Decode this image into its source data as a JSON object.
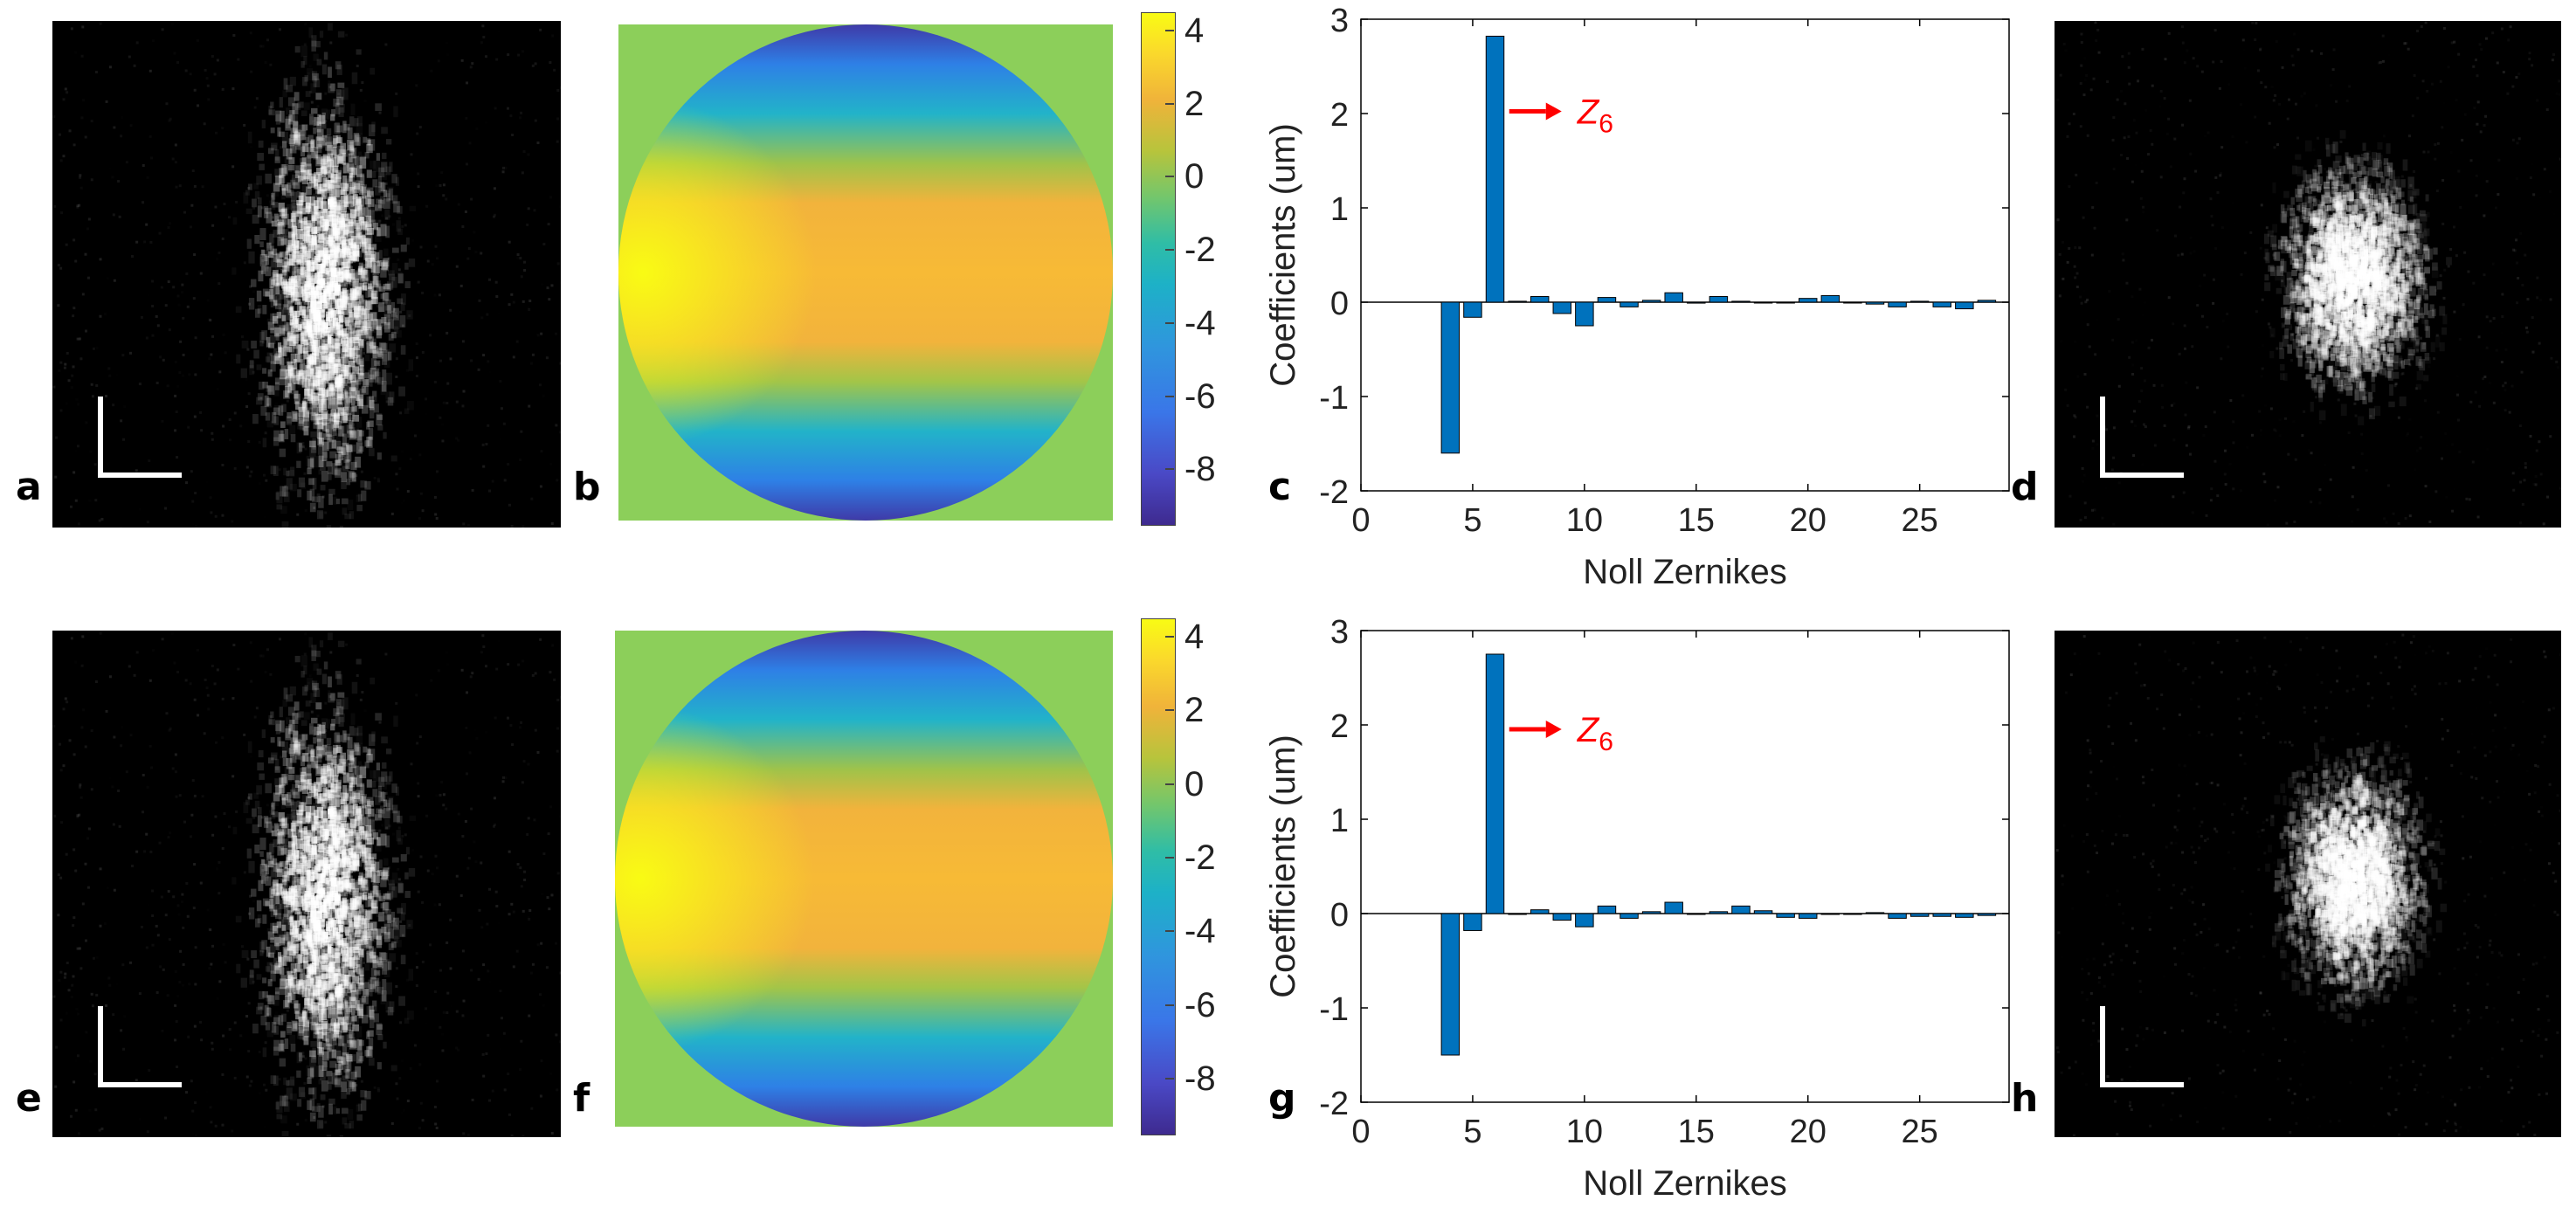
{
  "panel_letters": {
    "a": "a",
    "b": "b",
    "c": "c",
    "d": "d",
    "e": "e",
    "f": "f",
    "g": "g",
    "h": "h"
  },
  "colorbar_ticks": [
    "4",
    "2",
    "0",
    "-2",
    "-4",
    "-6",
    "-8"
  ],
  "colorbar_range": [
    -9.5,
    4.5
  ],
  "colors": {
    "bar": "#0072BD",
    "annotation": "#ff0000",
    "phase_background": "#8ccf5a"
  },
  "chart_data": [
    {
      "type": "bar",
      "panel": "c",
      "xlabel": "Noll Zernikes",
      "ylabel": "Coefficients (um)",
      "xlim": [
        0,
        29
      ],
      "ylim": [
        -2,
        3
      ],
      "xticks": [
        0,
        5,
        10,
        15,
        20,
        25
      ],
      "yticks": [
        -2,
        -1,
        0,
        1,
        2,
        3
      ],
      "annotation": {
        "label": "Z",
        "subscript": "6",
        "target_index": 6
      },
      "x": [
        4,
        5,
        6,
        7,
        8,
        9,
        10,
        11,
        12,
        13,
        14,
        15,
        16,
        17,
        18,
        19,
        20,
        21,
        22,
        23,
        24,
        25,
        26,
        27,
        28
      ],
      "values": [
        -1.6,
        -0.16,
        2.82,
        0.01,
        0.06,
        -0.12,
        -0.25,
        0.05,
        -0.05,
        0.02,
        0.1,
        -0.01,
        0.06,
        0.01,
        0.0,
        0.0,
        0.04,
        0.07,
        0.0,
        -0.02,
        -0.05,
        0.01,
        -0.05,
        -0.07,
        0.02
      ]
    },
    {
      "type": "bar",
      "panel": "g",
      "xlabel": "Noll Zernikes",
      "ylabel": "Coefficients (um)",
      "xlim": [
        0,
        29
      ],
      "ylim": [
        -2,
        3
      ],
      "xticks": [
        0,
        5,
        10,
        15,
        20,
        25
      ],
      "yticks": [
        -2,
        -1,
        0,
        1,
        2,
        3
      ],
      "annotation": {
        "label": "Z",
        "subscript": "6",
        "target_index": 6
      },
      "x": [
        4,
        5,
        6,
        7,
        8,
        9,
        10,
        11,
        12,
        13,
        14,
        15,
        16,
        17,
        18,
        19,
        20,
        21,
        22,
        23,
        24,
        25,
        26,
        27,
        28
      ],
      "values": [
        -1.5,
        -0.18,
        2.75,
        0.0,
        0.04,
        -0.07,
        -0.14,
        0.08,
        -0.05,
        0.02,
        0.12,
        0.0,
        0.02,
        0.08,
        0.03,
        -0.04,
        -0.05,
        0.0,
        0.0,
        0.01,
        -0.05,
        -0.03,
        -0.03,
        -0.04,
        -0.02
      ]
    }
  ]
}
